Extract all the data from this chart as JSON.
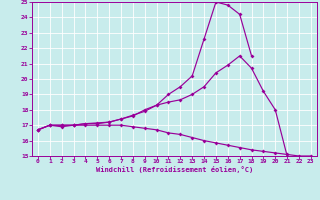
{
  "bg_color": "#c8ecec",
  "line_color": "#990099",
  "grid_color": "#ffffff",
  "xlim": [
    -0.5,
    23.5
  ],
  "ylim": [
    15,
    25
  ],
  "xticks": [
    0,
    1,
    2,
    3,
    4,
    5,
    6,
    7,
    8,
    9,
    10,
    11,
    12,
    13,
    14,
    15,
    16,
    17,
    18,
    19,
    20,
    21,
    22,
    23
  ],
  "yticks": [
    15,
    16,
    17,
    18,
    19,
    20,
    21,
    22,
    23,
    24,
    25
  ],
  "xlabel": "Windchill (Refroidissement éolien,°C)",
  "line1_x": [
    0,
    1,
    2,
    3,
    4,
    5,
    6,
    7,
    8,
    9,
    10,
    11,
    12,
    13,
    14,
    15,
    16,
    17,
    18
  ],
  "line1_y": [
    16.7,
    17.0,
    17.0,
    17.0,
    17.1,
    17.1,
    17.2,
    17.4,
    17.6,
    18.0,
    18.3,
    19.0,
    19.5,
    20.2,
    22.6,
    25.0,
    24.8,
    24.2,
    21.5
  ],
  "line2_x": [
    0,
    1,
    2,
    3,
    4,
    5,
    6,
    7,
    8,
    9,
    10,
    11,
    12,
    13,
    14,
    15,
    16,
    17,
    18,
    19,
    20,
    21
  ],
  "line2_y": [
    16.7,
    17.0,
    16.9,
    17.0,
    17.1,
    17.15,
    17.2,
    17.4,
    17.65,
    17.9,
    18.3,
    18.5,
    18.65,
    19.0,
    19.5,
    20.4,
    20.9,
    21.5,
    20.7,
    19.2,
    18.0,
    15.0
  ],
  "line3_x": [
    0,
    1,
    2,
    3,
    4,
    5,
    6,
    7,
    8,
    9,
    10,
    11,
    12,
    13,
    14,
    15,
    16,
    17,
    18,
    19,
    20,
    21,
    22,
    23
  ],
  "line3_y": [
    16.7,
    17.0,
    17.0,
    17.0,
    17.0,
    17.0,
    17.0,
    17.0,
    16.9,
    16.8,
    16.7,
    16.5,
    16.4,
    16.2,
    16.0,
    15.85,
    15.7,
    15.55,
    15.4,
    15.3,
    15.2,
    15.1,
    15.0,
    15.0
  ]
}
